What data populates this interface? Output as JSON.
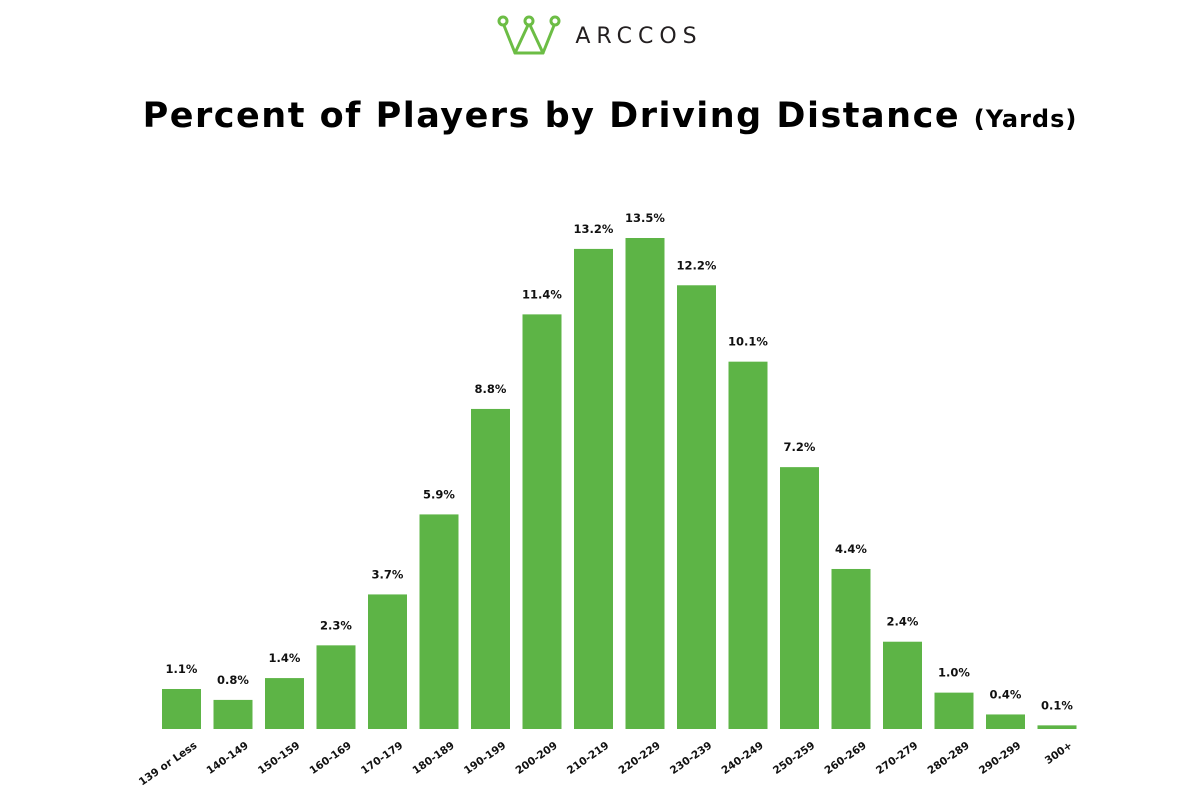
{
  "brand": {
    "name": "ARCCOS",
    "accent_color": "#6cbd45",
    "icon": "crown-icon"
  },
  "chart_data": {
    "type": "bar",
    "title": "Percent of Players by Driving Distance",
    "subtitle": "(Yards)",
    "xlabel": "",
    "ylabel": "",
    "categories": [
      "139 or Less",
      "140-149",
      "150-159",
      "160-169",
      "170-179",
      "180-189",
      "190-199",
      "200-209",
      "210-219",
      "220-229",
      "230-239",
      "240-249",
      "250-259",
      "260-269",
      "270-279",
      "280-289",
      "290-299",
      "300+"
    ],
    "values": [
      1.1,
      0.8,
      1.4,
      2.3,
      3.7,
      5.9,
      8.8,
      11.4,
      13.2,
      13.5,
      12.2,
      10.1,
      7.2,
      4.4,
      2.4,
      1.0,
      0.4,
      0.1
    ],
    "value_labels": [
      "1.1%",
      "0.8%",
      "1.4%",
      "2.3%",
      "3.7%",
      "5.9%",
      "8.8%",
      "11.4%",
      "13.2%",
      "13.5%",
      "12.2%",
      "10.1%",
      "7.2%",
      "4.4%",
      "2.4%",
      "1.0%",
      "0.4%",
      "0.1%"
    ],
    "ylim": [
      0,
      13.5
    ],
    "bar_color": "#5db446",
    "grid": false,
    "legend": "none"
  }
}
